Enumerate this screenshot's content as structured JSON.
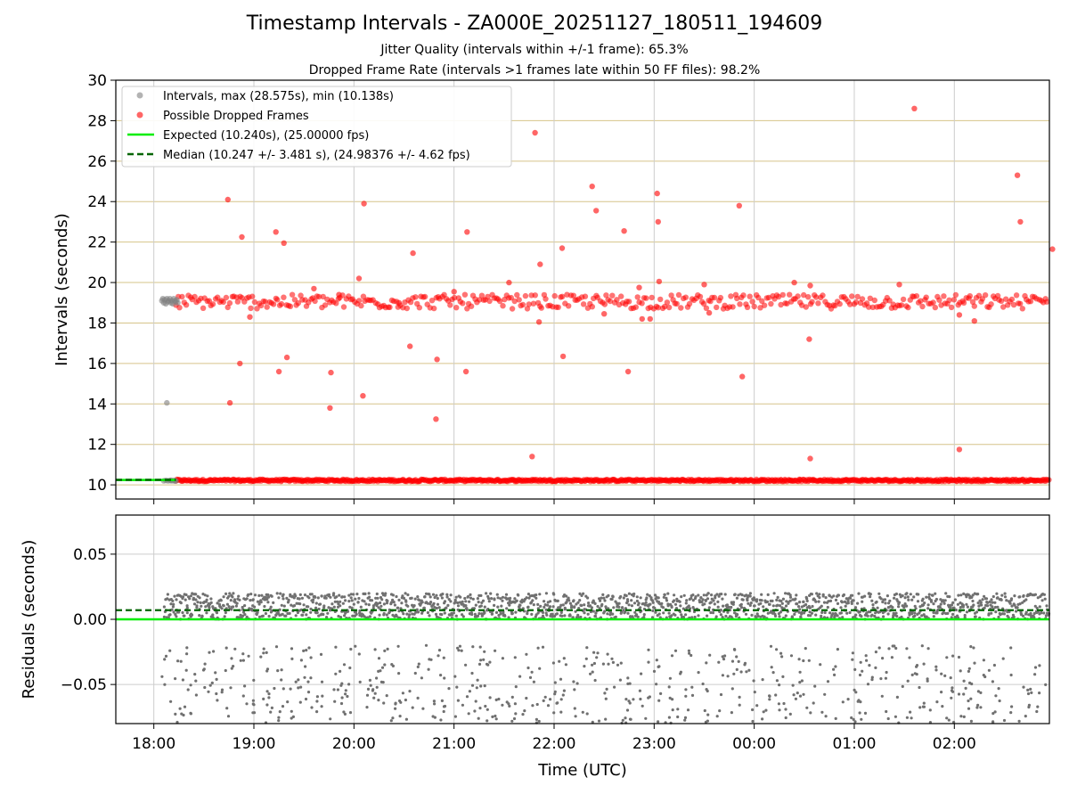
{
  "chart_data": [
    {
      "type": "scatter",
      "panel": "intervals",
      "title": "Timestamp Intervals - ZA000E_20251127_180511_194609",
      "subtitles": [
        "Jitter Quality (intervals within +/-1 frame): 65.3%",
        "Dropped Frame Rate (intervals >1 frames late within 50 FF files): 98.2%"
      ],
      "ylabel": "Intervals (seconds)",
      "ylim": [
        9.3,
        30
      ],
      "yticks": [
        "10",
        "12",
        "14",
        "16",
        "18",
        "20",
        "22",
        "24",
        "26",
        "28",
        "30"
      ],
      "grid": true,
      "legend_position": "upper-left",
      "series": [
        {
          "name": "Intervals, max (28.575s), min (10.138s)",
          "color": "#808080",
          "x_hours": [
            18.08,
            18.09,
            18.1,
            18.11,
            18.12,
            18.13,
            18.14,
            18.15,
            18.16,
            18.17,
            18.18,
            18.19,
            18.2,
            18.21,
            18.22,
            18.23,
            18.24,
            18.1,
            18.12,
            18.14,
            18.16,
            18.18,
            18.2,
            18.22,
            18.13,
            18.17,
            18.21
          ],
          "y": [
            19.1,
            19.2,
            19.0,
            19.15,
            18.95,
            19.2,
            19.05,
            19.1,
            19.2,
            19.0,
            19.1,
            18.95,
            19.2,
            19.1,
            19.05,
            19.15,
            19.0,
            10.2,
            10.22,
            10.2,
            10.21,
            10.2,
            10.22,
            10.2,
            14.05,
            10.23,
            10.19
          ]
        },
        {
          "name": "Possible Dropped Frames",
          "color": "#ff0000",
          "x_hours": [
            18.74,
            18.88,
            18.76,
            18.86,
            19.22,
            19.3,
            19.25,
            19.33,
            18.96,
            19.6,
            19.77,
            19.76,
            20.1,
            20.09,
            20.05,
            20.59,
            20.56,
            20.83,
            20.82,
            21.13,
            21.12,
            21.55,
            21.81,
            21.78,
            21.86,
            21.85,
            22.08,
            22.09,
            22.38,
            22.42,
            22.7,
            22.74,
            22.88,
            23.03,
            23.04,
            23.05,
            22.96,
            23.5,
            23.85,
            23.88,
            24.55,
            24.56,
            25.6,
            26.63,
            26.66,
            26.98,
            26.05,
            26.2,
            25.45,
            24.4,
            24.56,
            26.05,
            22.85,
            23.55,
            22.5,
            21.0,
            20.45,
            19.85
          ],
          "y": [
            24.1,
            22.25,
            14.05,
            16.0,
            22.5,
            21.95,
            15.6,
            16.3,
            18.3,
            19.7,
            15.55,
            13.8,
            23.9,
            14.4,
            20.2,
            21.45,
            16.85,
            16.2,
            13.25,
            22.5,
            15.6,
            20.0,
            27.4,
            11.4,
            20.9,
            18.05,
            21.7,
            16.35,
            24.75,
            23.55,
            22.55,
            15.6,
            18.2,
            24.4,
            23.0,
            20.05,
            18.2,
            19.9,
            23.8,
            15.35,
            17.2,
            11.3,
            28.6,
            25.3,
            23.0,
            21.65,
            11.75,
            18.1,
            19.9,
            20.0,
            19.85,
            18.4,
            19.75,
            18.5,
            18.45,
            19.55,
            19.0,
            19.4
          ]
        },
        {
          "name": "Expected (10.240s), (25.00000 fps)",
          "color": "#00ee00",
          "y_value": 10.24
        },
        {
          "name": "Median (10.247 +/- 3.481 s), (24.98376 +/- 4.62 fps)",
          "color": "#006400",
          "y_value": 10.247
        }
      ],
      "bands": [
        {
          "center": 10.22,
          "spread": 0.05,
          "from_hour": 18.22,
          "to_hour": 26.95,
          "color": "#ff0000"
        },
        {
          "center": 19.05,
          "spread": 0.35,
          "from_hour": 18.22,
          "to_hour": 26.95,
          "color": "#ff0000"
        }
      ]
    },
    {
      "type": "scatter",
      "panel": "residuals",
      "ylabel": "Residuals (seconds)",
      "xlabel": "Time (UTC)",
      "ylim": [
        -0.08,
        0.08
      ],
      "yticks": [
        "−0.05",
        "0.00",
        "0.05"
      ],
      "ytick_values": [
        -0.05,
        0.0,
        0.05
      ],
      "xlim_hours": [
        17.62,
        26.95
      ],
      "xticks": [
        "18:00",
        "19:00",
        "20:00",
        "21:00",
        "22:00",
        "23:00",
        "00:00",
        "01:00",
        "02:00"
      ],
      "xtick_hours": [
        18,
        19,
        20,
        21,
        22,
        23,
        24,
        25,
        26
      ],
      "grid": true,
      "point_color": "#707070",
      "expected_line": 0.0,
      "expected_color": "#00ee00",
      "median_line": 0.007,
      "median_color": "#006400",
      "upper_band": {
        "min": 0.0,
        "max": 0.02
      },
      "lower_scatter": {
        "min": -0.08,
        "max": -0.02
      }
    }
  ]
}
